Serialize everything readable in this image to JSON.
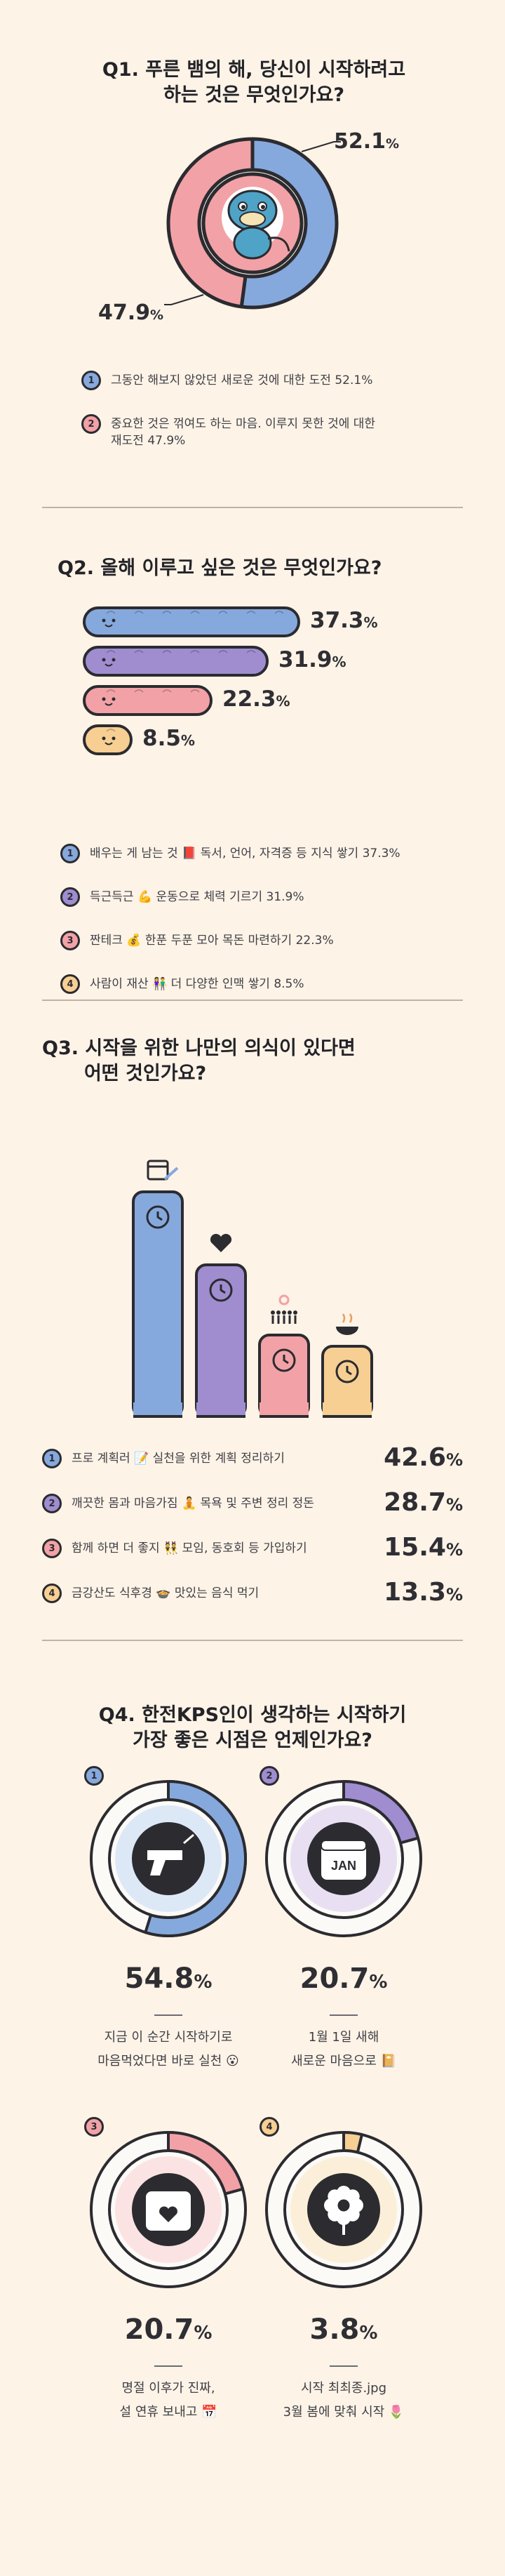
{
  "q1": {
    "title_line1": "Q1. 푸른 뱀의 해, 당신이 시작하려고",
    "title_line2": "하는 것은 무엇인가요?",
    "pct_a": "52.1",
    "pct_b": "47.9",
    "pct_unit": "%",
    "legend": [
      {
        "num": "1",
        "line1": "그동안 해보지 않았던 새로운 것에 대한 도전  52.1%",
        "line2": ""
      },
      {
        "num": "2",
        "line1": "중요한 것은 꺾여도 하는 마음. 이루지 못한 것에 대한",
        "line2": "재도전  47.9%"
      }
    ]
  },
  "q2": {
    "title": "Q2. 올해 이루고 싶은 것은 무엇인가요?",
    "unit": "%",
    "values_text": [
      "37.3",
      "31.9",
      "22.3",
      "8.5"
    ],
    "legend": [
      {
        "num": "1",
        "text": "배우는 게 남는 것 📕 독서, 언어, 자격증 등 지식 쌓기  37.3%"
      },
      {
        "num": "2",
        "text": "득근득근 💪 운동으로 체력 기르기  31.9%"
      },
      {
        "num": "3",
        "text": "짠테크 💰 한푼 두푼 모아 목돈 마련하기  22.3%"
      },
      {
        "num": "4",
        "text": "사람이 재산 👫 더 다양한 인맥 쌓기  8.5%"
      }
    ]
  },
  "q3": {
    "title_line1": "Q3. 시작을 위한 나만의 의식이 있다면",
    "title_line2": "어떤 것인가요?",
    "unit": "%",
    "values_text": [
      "42.6",
      "28.7",
      "15.4",
      "13.3"
    ],
    "legend": [
      {
        "num": "1",
        "text": "프로 계획러 📝 실천을 위한 계획 정리하기"
      },
      {
        "num": "2",
        "text": "깨끗한 몸과 마음가짐 🧘 목욕 및 주변 정리 정돈"
      },
      {
        "num": "3",
        "text": "함께 하면 더 좋지 👯 모임, 동호회 등 가입하기"
      },
      {
        "num": "4",
        "text": "금강산도 식후경 🍲 맛있는 음식 먹기"
      }
    ]
  },
  "q4": {
    "title_line1": "Q4. 한전KPS인이 생각하는 시작하기",
    "title_line2": "가장 좋은 시점은 언제인가요?",
    "unit": "%",
    "items": [
      {
        "num": "1",
        "pct": "54.8",
        "cap1": "지금 이 순간 시작하기로",
        "cap2": "마음먹었다면 바로 실천 😮"
      },
      {
        "num": "2",
        "pct": "20.7",
        "cap1": "1월 1일 새해",
        "cap2": "새로운 마음으로 📔",
        "icon_text": "JAN"
      },
      {
        "num": "3",
        "pct": "20.7",
        "cap1": "명절 이후가 진짜,",
        "cap2": "설 연휴 보내고 📅"
      },
      {
        "num": "4",
        "pct": "3.8",
        "cap1": "시작 최최종.jpg",
        "cap2": "3월 봄에 맞춰 시작 🌷"
      }
    ]
  },
  "colors": {
    "blue": "#86a9dd",
    "purple": "#9f8dd0",
    "pink": "#f2a2a6",
    "yellow": "#f7cf93",
    "outline": "#2b2b30",
    "bg": "#fdf3e7"
  },
  "chart_data": [
    {
      "type": "pie",
      "title": "Q1. 푸른 뱀의 해, 당신이 시작하려고 하는 것은 무엇인가요?",
      "categories": [
        "그동안 해보지 않았던 새로운 것에 대한 도전",
        "중요한 것은 꺾여도 하는 마음. 이루지 못한 것에 대한 재도전"
      ],
      "values": [
        52.1,
        47.9
      ],
      "colors": [
        "#86a9dd",
        "#f2a2a6"
      ]
    },
    {
      "type": "bar",
      "orientation": "horizontal",
      "title": "Q2. 올해 이루고 싶은 것은 무엇인가요?",
      "categories": [
        "지식 쌓기",
        "체력 기르기",
        "목돈 마련하기",
        "인맥 쌓기"
      ],
      "values": [
        37.3,
        31.9,
        22.3,
        8.5
      ],
      "colors": [
        "#86a9dd",
        "#9f8dd0",
        "#f2a2a6",
        "#f7cf93"
      ]
    },
    {
      "type": "bar",
      "title": "Q3. 시작을 위한 나만의 의식이 있다면 어떤 것인가요?",
      "categories": [
        "계획 정리하기",
        "목욕 및 주변 정리 정돈",
        "모임, 동호회 등 가입하기",
        "맛있는 음식 먹기"
      ],
      "values": [
        42.6,
        28.7,
        15.4,
        13.3
      ],
      "colors": [
        "#86a9dd",
        "#9f8dd0",
        "#f2a2a6",
        "#f7cf93"
      ]
    },
    {
      "type": "pie",
      "title": "Q4. 한전KPS인이 생각하는 시작하기 가장 좋은 시점은 언제인가요?",
      "categories": [
        "지금 이 순간",
        "1월 1일 새해",
        "설 연휴 이후",
        "3월 봄"
      ],
      "values": [
        54.8,
        20.7,
        20.7,
        3.8
      ],
      "colors": [
        "#86a9dd",
        "#9f8dd0",
        "#f2a2a6",
        "#f7cf93"
      ]
    }
  ]
}
